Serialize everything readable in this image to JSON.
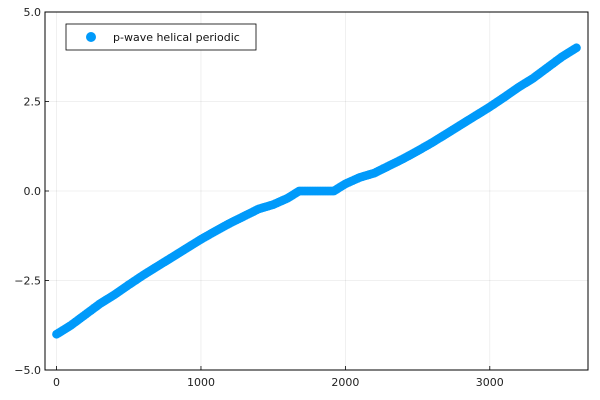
{
  "chart_data": {
    "type": "scatter",
    "title": "",
    "xlabel": "",
    "ylabel": "",
    "xlim": [
      -80,
      3680
    ],
    "ylim": [
      -5,
      5
    ],
    "x_ticks": [
      0,
      1000,
      2000,
      3000
    ],
    "y_ticks": [
      -5,
      -2.5,
      0,
      2.5,
      5
    ],
    "x_tick_labels": [
      "0",
      "1000",
      "2000",
      "3000"
    ],
    "y_tick_labels": [
      "−5.0",
      "−2.5",
      "0.0",
      "2.5",
      "5.0"
    ],
    "grid": true,
    "legend_position": "top-left",
    "series": [
      {
        "name": "p-wave helical periodic",
        "color": "#009AFA",
        "points": [
          [
            0,
            -4.0
          ],
          [
            100,
            -3.75
          ],
          [
            200,
            -3.45
          ],
          [
            300,
            -3.15
          ],
          [
            400,
            -2.9
          ],
          [
            500,
            -2.62
          ],
          [
            600,
            -2.35
          ],
          [
            700,
            -2.1
          ],
          [
            800,
            -1.85
          ],
          [
            900,
            -1.6
          ],
          [
            1000,
            -1.35
          ],
          [
            1100,
            -1.12
          ],
          [
            1200,
            -0.9
          ],
          [
            1300,
            -0.7
          ],
          [
            1400,
            -0.5
          ],
          [
            1500,
            -0.38
          ],
          [
            1600,
            -0.2
          ],
          [
            1680,
            0.0
          ],
          [
            1760,
            0.0
          ],
          [
            1840,
            0.0
          ],
          [
            1920,
            0.0
          ],
          [
            2000,
            0.2
          ],
          [
            2100,
            0.38
          ],
          [
            2200,
            0.5
          ],
          [
            2300,
            0.7
          ],
          [
            2400,
            0.9
          ],
          [
            2500,
            1.12
          ],
          [
            2600,
            1.35
          ],
          [
            2700,
            1.6
          ],
          [
            2800,
            1.85
          ],
          [
            2900,
            2.1
          ],
          [
            3000,
            2.35
          ],
          [
            3100,
            2.62
          ],
          [
            3200,
            2.9
          ],
          [
            3300,
            3.15
          ],
          [
            3400,
            3.45
          ],
          [
            3500,
            3.75
          ],
          [
            3600,
            4.0
          ]
        ]
      }
    ]
  }
}
